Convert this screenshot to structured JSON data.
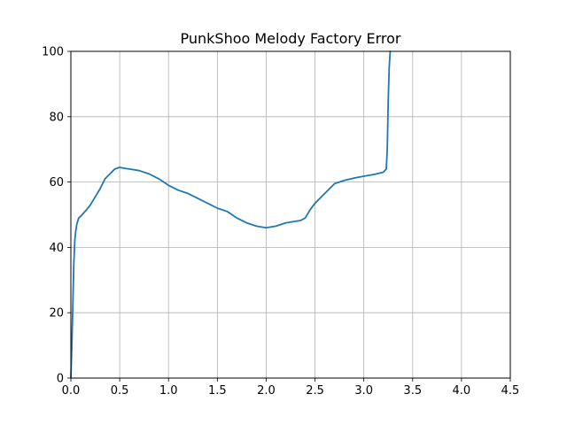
{
  "chart_data": {
    "type": "line",
    "title": "PunkShoo Melody Factory Error",
    "xlabel": "",
    "ylabel": "",
    "xlim": [
      0,
      4.5
    ],
    "ylim": [
      0,
      100
    ],
    "xticks": [
      0,
      0.5,
      1,
      1.5,
      2,
      2.5,
      3,
      3.5,
      4,
      4.5
    ],
    "xtick_labels": [
      "0.0",
      "0.5",
      "1.0",
      "1.5",
      "2.0",
      "2.5",
      "3.0",
      "3.5",
      "4.0",
      "4.5"
    ],
    "yticks": [
      0,
      20,
      40,
      60,
      80,
      100
    ],
    "ytick_labels": [
      "0",
      "20",
      "40",
      "60",
      "80",
      "100"
    ],
    "grid": true,
    "series": [
      {
        "color": "#1f77b4",
        "x": [
          0.0,
          0.01,
          0.02,
          0.03,
          0.04,
          0.05,
          0.06,
          0.08,
          0.1,
          0.13,
          0.16,
          0.2,
          0.25,
          0.3,
          0.35,
          0.4,
          0.45,
          0.5,
          0.55,
          0.6,
          0.7,
          0.8,
          0.9,
          1.0,
          1.1,
          1.2,
          1.3,
          1.4,
          1.5,
          1.6,
          1.7,
          1.8,
          1.9,
          2.0,
          2.1,
          2.2,
          2.3,
          2.35,
          2.4,
          2.45,
          2.5,
          2.6,
          2.7,
          2.8,
          2.9,
          3.0,
          3.1,
          3.2,
          3.23,
          3.24,
          3.25,
          3.26,
          3.27
        ],
        "y": [
          0,
          10,
          22,
          35,
          42,
          45,
          47,
          49,
          49.5,
          50.5,
          51.5,
          53,
          55.5,
          58,
          61,
          62.5,
          64,
          64.5,
          64.2,
          64,
          63.5,
          62.5,
          61,
          59,
          57.5,
          56.5,
          55,
          53.5,
          52,
          51,
          49,
          47.5,
          46.5,
          46,
          46.5,
          47.5,
          48,
          48.2,
          49,
          51.5,
          53.5,
          56.5,
          59.5,
          60.5,
          61.2,
          61.8,
          62.3,
          63,
          64,
          70,
          85,
          95,
          100
        ]
      }
    ]
  }
}
